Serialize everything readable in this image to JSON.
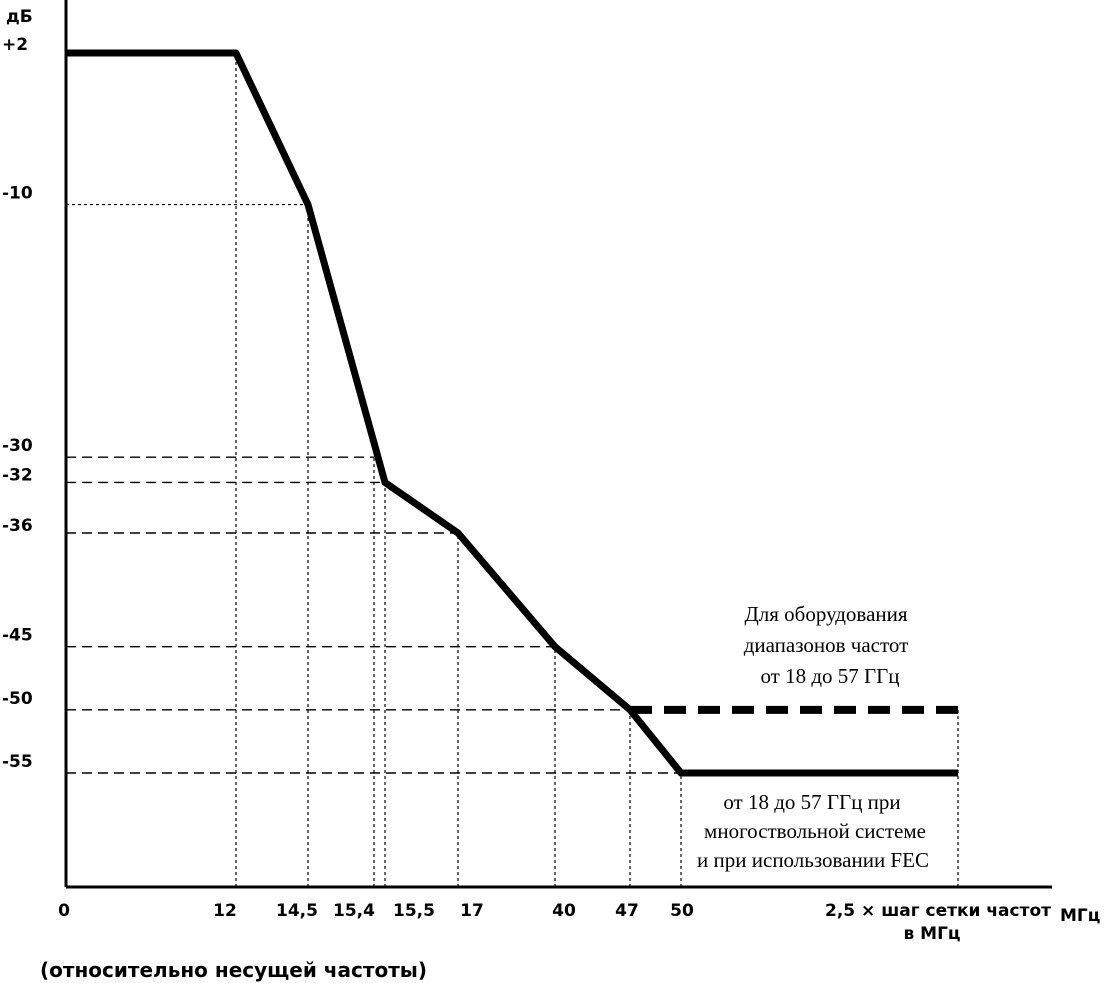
{
  "chart_data": {
    "type": "line",
    "y_unit": "дБ",
    "x_unit": "МГц",
    "x_note": "(относительно несущей частоты)",
    "x_ticks": [
      {
        "key": "0",
        "label": "0"
      },
      {
        "key": "12",
        "label": "12"
      },
      {
        "key": "14.5",
        "label": "14,5"
      },
      {
        "key": "15.4",
        "label": "15,4"
      },
      {
        "key": "15.5",
        "label": "15,5"
      },
      {
        "key": "17",
        "label": "17"
      },
      {
        "key": "40",
        "label": "40"
      },
      {
        "key": "47",
        "label": "47"
      },
      {
        "key": "50",
        "label": "50"
      },
      {
        "key": "end",
        "label": "2,5 × шаг сетки частот",
        "label2": "в МГц"
      }
    ],
    "y_ticks": [
      {
        "value": 2,
        "label": "+2"
      },
      {
        "value": -10,
        "label": "-10"
      },
      {
        "value": -30,
        "label": "-30"
      },
      {
        "value": -32,
        "label": "-32"
      },
      {
        "value": -36,
        "label": "-36"
      },
      {
        "value": -45,
        "label": "-45"
      },
      {
        "value": -50,
        "label": "-50"
      },
      {
        "value": -55,
        "label": "-55"
      }
    ],
    "series": [
      {
        "style": "solid",
        "points": [
          [
            "0",
            2
          ],
          [
            "12",
            2
          ],
          [
            "14.5",
            -10
          ],
          [
            "15.5",
            -32
          ],
          [
            "17",
            -36
          ],
          [
            "40",
            -45
          ],
          [
            "47",
            -50
          ],
          [
            "50",
            -55
          ],
          [
            "end",
            -55
          ]
        ],
        "annotation": [
          "от 18 до 57 ГГц при",
          "многоствольной системе",
          "и при использовании FEC"
        ]
      },
      {
        "style": "dashed",
        "points": [
          [
            "47",
            -50
          ],
          [
            "end",
            -50
          ]
        ],
        "annotation": [
          "Для оборудования",
          "диапазонов частот",
          "от 18 до 57 ГГц"
        ]
      }
    ]
  }
}
